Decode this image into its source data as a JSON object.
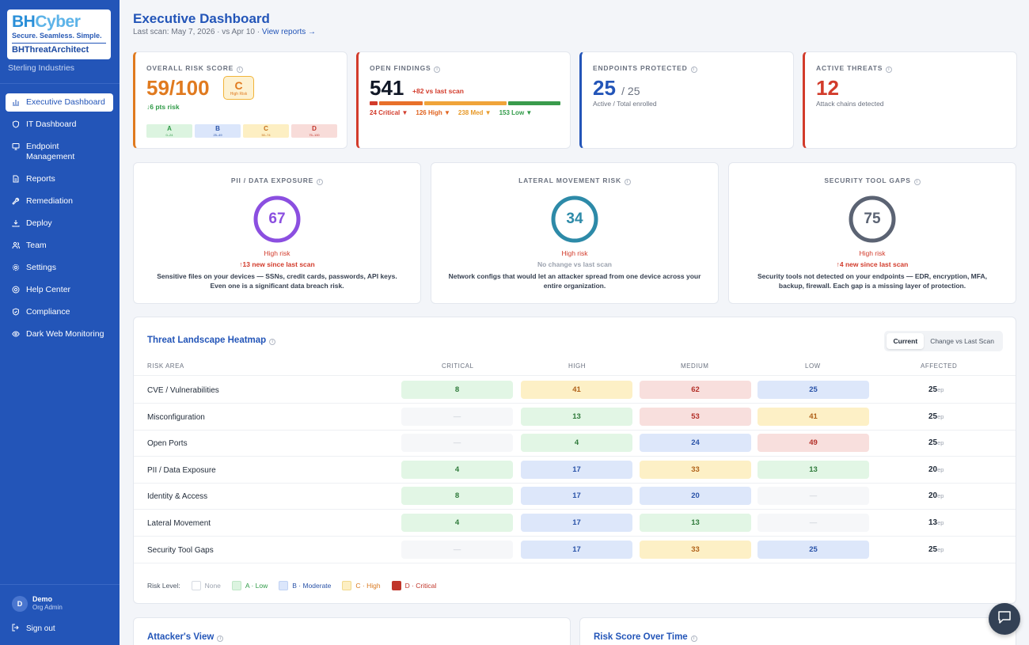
{
  "brand": {
    "logo_main_bh": "BH",
    "logo_main_cyber": "Cyber",
    "tagline": "Secure. Seamless. Simple.",
    "product": "BHThreatArchitect",
    "org": "Sterling Industries"
  },
  "nav": [
    {
      "label": "Executive Dashboard",
      "icon": "bar-chart-icon",
      "active": true
    },
    {
      "label": "IT Dashboard",
      "icon": "shield-icon"
    },
    {
      "label": "Endpoint Management",
      "icon": "monitor-icon"
    },
    {
      "label": "Reports",
      "icon": "document-icon"
    },
    {
      "label": "Remediation",
      "icon": "wrench-icon"
    },
    {
      "label": "Deploy",
      "icon": "download-icon"
    },
    {
      "label": "Team",
      "icon": "users-icon"
    },
    {
      "label": "Settings",
      "icon": "gear-icon"
    },
    {
      "label": "Help Center",
      "icon": "help-icon"
    },
    {
      "label": "Compliance",
      "icon": "shield-check-icon"
    },
    {
      "label": "Dark Web Monitoring",
      "icon": "eye-icon"
    }
  ],
  "user": {
    "initial": "D",
    "name": "Demo",
    "role": "Org Admin",
    "signout": "Sign out"
  },
  "header": {
    "title": "Executive Dashboard",
    "subtitle": "Last scan: May 7, 2026 · vs Apr 10 · ",
    "link": "View reports →"
  },
  "kpis": {
    "risk": {
      "label": "OVERALL RISK SCORE",
      "value": "59/100",
      "grade": "C",
      "grade_text": "High Risk",
      "delta": "↓6 pts risk",
      "bands": [
        {
          "letter": "A",
          "range": "0–24"
        },
        {
          "letter": "B",
          "range": "25–49"
        },
        {
          "letter": "C",
          "range": "50–74"
        },
        {
          "letter": "D",
          "range": "75–100"
        }
      ]
    },
    "findings": {
      "label": "OPEN FINDINGS",
      "value": "541",
      "delta": "+82 vs last scan",
      "critical": "24 Critical ▼",
      "high": "126 High ▼",
      "med": "238 Med ▼",
      "low": "153 Low ▼",
      "counts": [
        24,
        126,
        238,
        153
      ]
    },
    "endpoints": {
      "label": "ENDPOINTS PROTECTED",
      "value": "25",
      "total": "/ 25",
      "caption": "Active / Total enrolled"
    },
    "threats": {
      "label": "ACTIVE THREATS",
      "value": "12",
      "caption": "Attack chains detected"
    }
  },
  "gauges": [
    {
      "title": "PII / DATA EXPOSURE",
      "value": "67",
      "level": 0.67,
      "color": "#8b4fe0",
      "risk": "High risk",
      "change": "↑13 new since last scan",
      "change_color": "#d23b2b",
      "desc": "Sensitive files on your devices — SSNs, credit cards, passwords, API keys. Even one is a significant data breach risk."
    },
    {
      "title": "LATERAL MOVEMENT RISK",
      "value": "34",
      "level": 0.34,
      "color": "#2d8aa8",
      "risk": "High risk",
      "change": "No change vs last scan",
      "change_color": "#9ca3af",
      "desc": "Network configs that would let an attacker spread from one device across your entire organization."
    },
    {
      "title": "SECURITY TOOL GAPS",
      "value": "75",
      "level": 0.75,
      "color": "#5b6373",
      "risk": "High risk",
      "change": "↑4 new since last scan",
      "change_color": "#d23b2b",
      "desc": "Security tools not detected on your endpoints — EDR, encryption, MFA, backup, firewall. Each gap is a missing layer of protection."
    }
  ],
  "heatmap": {
    "title": "Threat Landscape Heatmap",
    "toggle": [
      "Current",
      "Change vs Last Scan"
    ],
    "columns": [
      "RISK AREA",
      "CRITICAL",
      "HIGH",
      "MEDIUM",
      "LOW",
      "AFFECTED"
    ],
    "rows": [
      {
        "name": "CVE / Vulnerabilities",
        "cells": [
          [
            "8",
            "a"
          ],
          [
            "41",
            "c"
          ],
          [
            "62",
            "d"
          ],
          [
            "25",
            "b"
          ]
        ],
        "affected": "25",
        "unit": "ep"
      },
      {
        "name": "Misconfiguration",
        "cells": [
          [
            "—",
            "none"
          ],
          [
            "13",
            "a"
          ],
          [
            "53",
            "d"
          ],
          [
            "41",
            "c"
          ]
        ],
        "affected": "25",
        "unit": "ep"
      },
      {
        "name": "Open Ports",
        "cells": [
          [
            "—",
            "none"
          ],
          [
            "4",
            "a"
          ],
          [
            "24",
            "b"
          ],
          [
            "49",
            "d"
          ]
        ],
        "affected": "25",
        "unit": "ep"
      },
      {
        "name": "PII / Data Exposure",
        "cells": [
          [
            "4",
            "a"
          ],
          [
            "17",
            "b"
          ],
          [
            "33",
            "c"
          ],
          [
            "13",
            "a"
          ]
        ],
        "affected": "20",
        "unit": "ep"
      },
      {
        "name": "Identity & Access",
        "cells": [
          [
            "8",
            "a"
          ],
          [
            "17",
            "b"
          ],
          [
            "20",
            "b"
          ],
          [
            "—",
            "none"
          ]
        ],
        "affected": "20",
        "unit": "ep"
      },
      {
        "name": "Lateral Movement",
        "cells": [
          [
            "4",
            "a"
          ],
          [
            "17",
            "b"
          ],
          [
            "13",
            "a"
          ],
          [
            "—",
            "none"
          ]
        ],
        "affected": "13",
        "unit": "ep"
      },
      {
        "name": "Security Tool Gaps",
        "cells": [
          [
            "—",
            "none"
          ],
          [
            "17",
            "b"
          ],
          [
            "33",
            "c"
          ],
          [
            "25",
            "b"
          ]
        ],
        "affected": "25",
        "unit": "ep"
      }
    ],
    "legend_label": "Risk Level:",
    "legend": [
      {
        "label": "None",
        "cls": "none"
      },
      {
        "label": "A · Low",
        "cls": "a"
      },
      {
        "label": "B · Moderate",
        "cls": "b"
      },
      {
        "label": "C · High",
        "cls": "c"
      },
      {
        "label": "D · Critical",
        "cls": "d"
      }
    ]
  },
  "bottom": {
    "left_title": "Attacker's View",
    "right_title": "Risk Score Over Time"
  },
  "colors": {
    "accent": "#2355b8",
    "orange": "#e07a1f",
    "red": "#d23b2b",
    "green": "#2f9a47"
  }
}
